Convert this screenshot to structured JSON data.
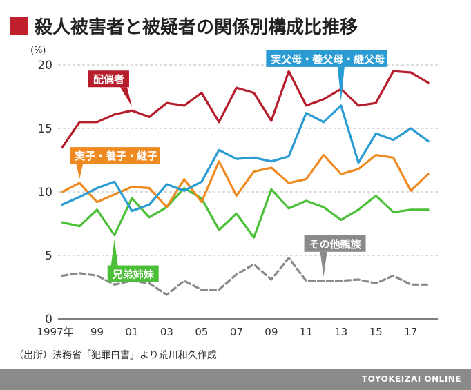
{
  "title": "殺人被害者と被疑者の関係別構成比推移",
  "source_note": "（出所）法務省「犯罪白書」より荒川和久作成",
  "footer_brand": "TOYOKEIZAI ONLINE",
  "chart_data": {
    "type": "line",
    "unit_label": "(%)",
    "ylim": [
      0,
      20
    ],
    "yticks": [
      0,
      5,
      10,
      15,
      20
    ],
    "xlim": [
      1997,
      2018
    ],
    "x_tick_labels": [
      {
        "year": 1997,
        "label": "1997年"
      },
      {
        "year": 1999,
        "label": "99"
      },
      {
        "year": 2001,
        "label": "01"
      },
      {
        "year": 2003,
        "label": "03"
      },
      {
        "year": 2005,
        "label": "05"
      },
      {
        "year": 2007,
        "label": "07"
      },
      {
        "year": 2009,
        "label": "09"
      },
      {
        "year": 2011,
        "label": "11"
      },
      {
        "year": 2013,
        "label": "13"
      },
      {
        "year": 2015,
        "label": "15"
      },
      {
        "year": 2017,
        "label": "17"
      }
    ],
    "grid": "horizontal-dashed",
    "x": [
      1997,
      1998,
      1999,
      2000,
      2001,
      2002,
      2003,
      2004,
      2005,
      2006,
      2007,
      2008,
      2009,
      2010,
      2011,
      2012,
      2013,
      2014,
      2015,
      2016,
      2017,
      2018
    ],
    "series": [
      {
        "name": "配偶者",
        "color": "#b71c2a",
        "dashed": false,
        "label_year": 2001,
        "label_value": 16.4,
        "callout_pos": "above",
        "values": [
          13.5,
          15.5,
          15.5,
          16.1,
          16.4,
          15.9,
          17.0,
          16.8,
          17.8,
          15.5,
          18.2,
          17.8,
          15.6,
          19.5,
          16.8,
          17.3,
          18.1,
          16.8,
          17.0,
          19.5,
          19.4,
          18.6
        ]
      },
      {
        "name": "実父母・養父母・継父母",
        "color": "#2b9bd3",
        "dashed": false,
        "label_year": 2013,
        "label_value": 16.8,
        "callout_pos": "above",
        "values": [
          9.0,
          9.6,
          10.3,
          10.8,
          8.5,
          9.0,
          10.6,
          10.1,
          10.8,
          13.3,
          12.6,
          12.7,
          12.4,
          12.8,
          16.2,
          15.5,
          16.8,
          12.3,
          14.6,
          14.1,
          15.0,
          14.0
        ]
      },
      {
        "name": "実子・養子・継子",
        "color": "#ef8a21",
        "dashed": false,
        "label_year": 1998,
        "label_value": 10.7,
        "callout_pos": "above",
        "values": [
          10.0,
          10.7,
          9.2,
          9.8,
          10.4,
          10.3,
          8.8,
          11.0,
          9.2,
          12.4,
          9.7,
          11.6,
          11.9,
          10.7,
          11.0,
          12.9,
          11.4,
          11.8,
          12.9,
          12.7,
          10.1,
          11.4
        ]
      },
      {
        "name": "兄弟姉妹",
        "color": "#4cbf38",
        "dashed": false,
        "label_year": 2000,
        "label_value": 6.6,
        "callout_pos": "below",
        "values": [
          7.6,
          7.3,
          8.6,
          6.6,
          9.5,
          8.0,
          8.8,
          10.3,
          9.5,
          7.0,
          8.3,
          6.4,
          10.2,
          8.7,
          9.3,
          8.8,
          7.8,
          8.6,
          9.7,
          8.4,
          8.6,
          8.6
        ]
      },
      {
        "name": "その他親族",
        "color": "#8a8a8a",
        "dashed": true,
        "label_year": 2012,
        "label_value": 3.0,
        "callout_pos": "above",
        "values": [
          3.4,
          3.6,
          3.4,
          2.7,
          3.0,
          2.8,
          1.9,
          3.0,
          2.3,
          2.3,
          3.5,
          4.3,
          3.1,
          4.8,
          3.0,
          3.0,
          3.0,
          3.1,
          2.8,
          3.4,
          2.7,
          2.7
        ]
      }
    ]
  }
}
